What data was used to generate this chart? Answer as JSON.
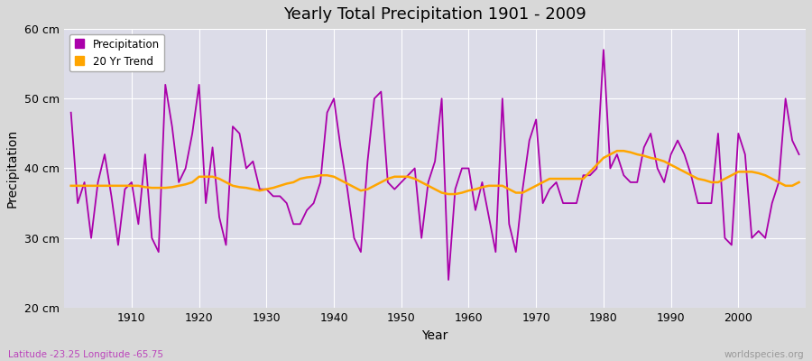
{
  "title": "Yearly Total Precipitation 1901 - 2009",
  "xlabel": "Year",
  "ylabel": "Precipitation",
  "subtitle": "Latitude -23.25 Longitude -65.75",
  "watermark": "worldspecies.org",
  "bg_color": "#d8d8d8",
  "plot_bg_color": "#dcdce8",
  "precip_color": "#aa00aa",
  "trend_color": "#FFA500",
  "ylim": [
    20,
    60
  ],
  "yticks": [
    20,
    30,
    40,
    50,
    60
  ],
  "ytick_labels": [
    "20 cm",
    "30 cm",
    "40 cm",
    "50 cm",
    "60 cm"
  ],
  "years": [
    1901,
    1902,
    1903,
    1904,
    1905,
    1906,
    1907,
    1908,
    1909,
    1910,
    1911,
    1912,
    1913,
    1914,
    1915,
    1916,
    1917,
    1918,
    1919,
    1920,
    1921,
    1922,
    1923,
    1924,
    1925,
    1926,
    1927,
    1928,
    1929,
    1930,
    1931,
    1932,
    1933,
    1934,
    1935,
    1936,
    1937,
    1938,
    1939,
    1940,
    1941,
    1942,
    1943,
    1944,
    1945,
    1946,
    1947,
    1948,
    1949,
    1950,
    1951,
    1952,
    1953,
    1954,
    1955,
    1956,
    1957,
    1958,
    1959,
    1960,
    1961,
    1962,
    1963,
    1964,
    1965,
    1966,
    1967,
    1968,
    1969,
    1970,
    1971,
    1972,
    1973,
    1974,
    1975,
    1976,
    1977,
    1978,
    1979,
    1980,
    1981,
    1982,
    1983,
    1984,
    1985,
    1986,
    1987,
    1988,
    1989,
    1990,
    1991,
    1992,
    1993,
    1994,
    1995,
    1996,
    1997,
    1998,
    1999,
    2000,
    2001,
    2002,
    2003,
    2004,
    2005,
    2006,
    2007,
    2008,
    2009
  ],
  "precip": [
    48,
    35,
    38,
    30,
    38,
    42,
    36,
    29,
    37,
    38,
    32,
    42,
    30,
    28,
    52,
    46,
    38,
    40,
    45,
    52,
    35,
    43,
    33,
    29,
    46,
    45,
    40,
    41,
    37,
    37,
    36,
    36,
    35,
    32,
    32,
    34,
    35,
    38,
    48,
    50,
    43,
    37,
    30,
    28,
    41,
    50,
    51,
    38,
    37,
    38,
    39,
    40,
    30,
    38,
    41,
    50,
    24,
    37,
    40,
    40,
    34,
    38,
    33,
    28,
    50,
    32,
    28,
    37,
    44,
    47,
    35,
    37,
    38,
    35,
    35,
    35,
    39,
    39,
    40,
    57,
    40,
    42,
    39,
    38,
    38,
    43,
    45,
    40,
    38,
    42,
    44,
    42,
    39,
    35,
    35,
    35,
    45,
    30,
    29,
    45,
    42,
    30,
    31,
    30,
    35,
    38,
    50,
    44,
    42
  ],
  "trend": [
    37.5,
    37.5,
    37.5,
    37.5,
    37.5,
    37.5,
    37.5,
    37.5,
    37.5,
    37.5,
    37.5,
    37.3,
    37.2,
    37.2,
    37.2,
    37.3,
    37.5,
    37.7,
    38.0,
    38.8,
    38.8,
    38.8,
    38.5,
    38.0,
    37.5,
    37.3,
    37.2,
    37.0,
    36.8,
    37.0,
    37.2,
    37.5,
    37.8,
    38.0,
    38.5,
    38.7,
    38.8,
    39.0,
    39.0,
    38.8,
    38.3,
    37.8,
    37.3,
    36.8,
    37.0,
    37.5,
    38.0,
    38.5,
    38.8,
    38.8,
    38.8,
    38.5,
    38.0,
    37.5,
    37.0,
    36.5,
    36.3,
    36.3,
    36.5,
    36.8,
    37.0,
    37.3,
    37.5,
    37.5,
    37.5,
    37.0,
    36.5,
    36.5,
    37.0,
    37.5,
    38.0,
    38.5,
    38.5,
    38.5,
    38.5,
    38.5,
    38.5,
    39.5,
    40.5,
    41.5,
    42.0,
    42.5,
    42.5,
    42.3,
    42.0,
    41.8,
    41.5,
    41.3,
    41.0,
    40.5,
    40.0,
    39.5,
    39.0,
    38.5,
    38.3,
    38.0,
    38.0,
    38.5,
    39.0,
    39.5,
    39.5,
    39.5,
    39.3,
    39.0,
    38.5,
    38.0,
    37.5,
    37.5,
    38.0
  ],
  "legend_labels": [
    "Precipitation",
    "20 Yr Trend"
  ]
}
